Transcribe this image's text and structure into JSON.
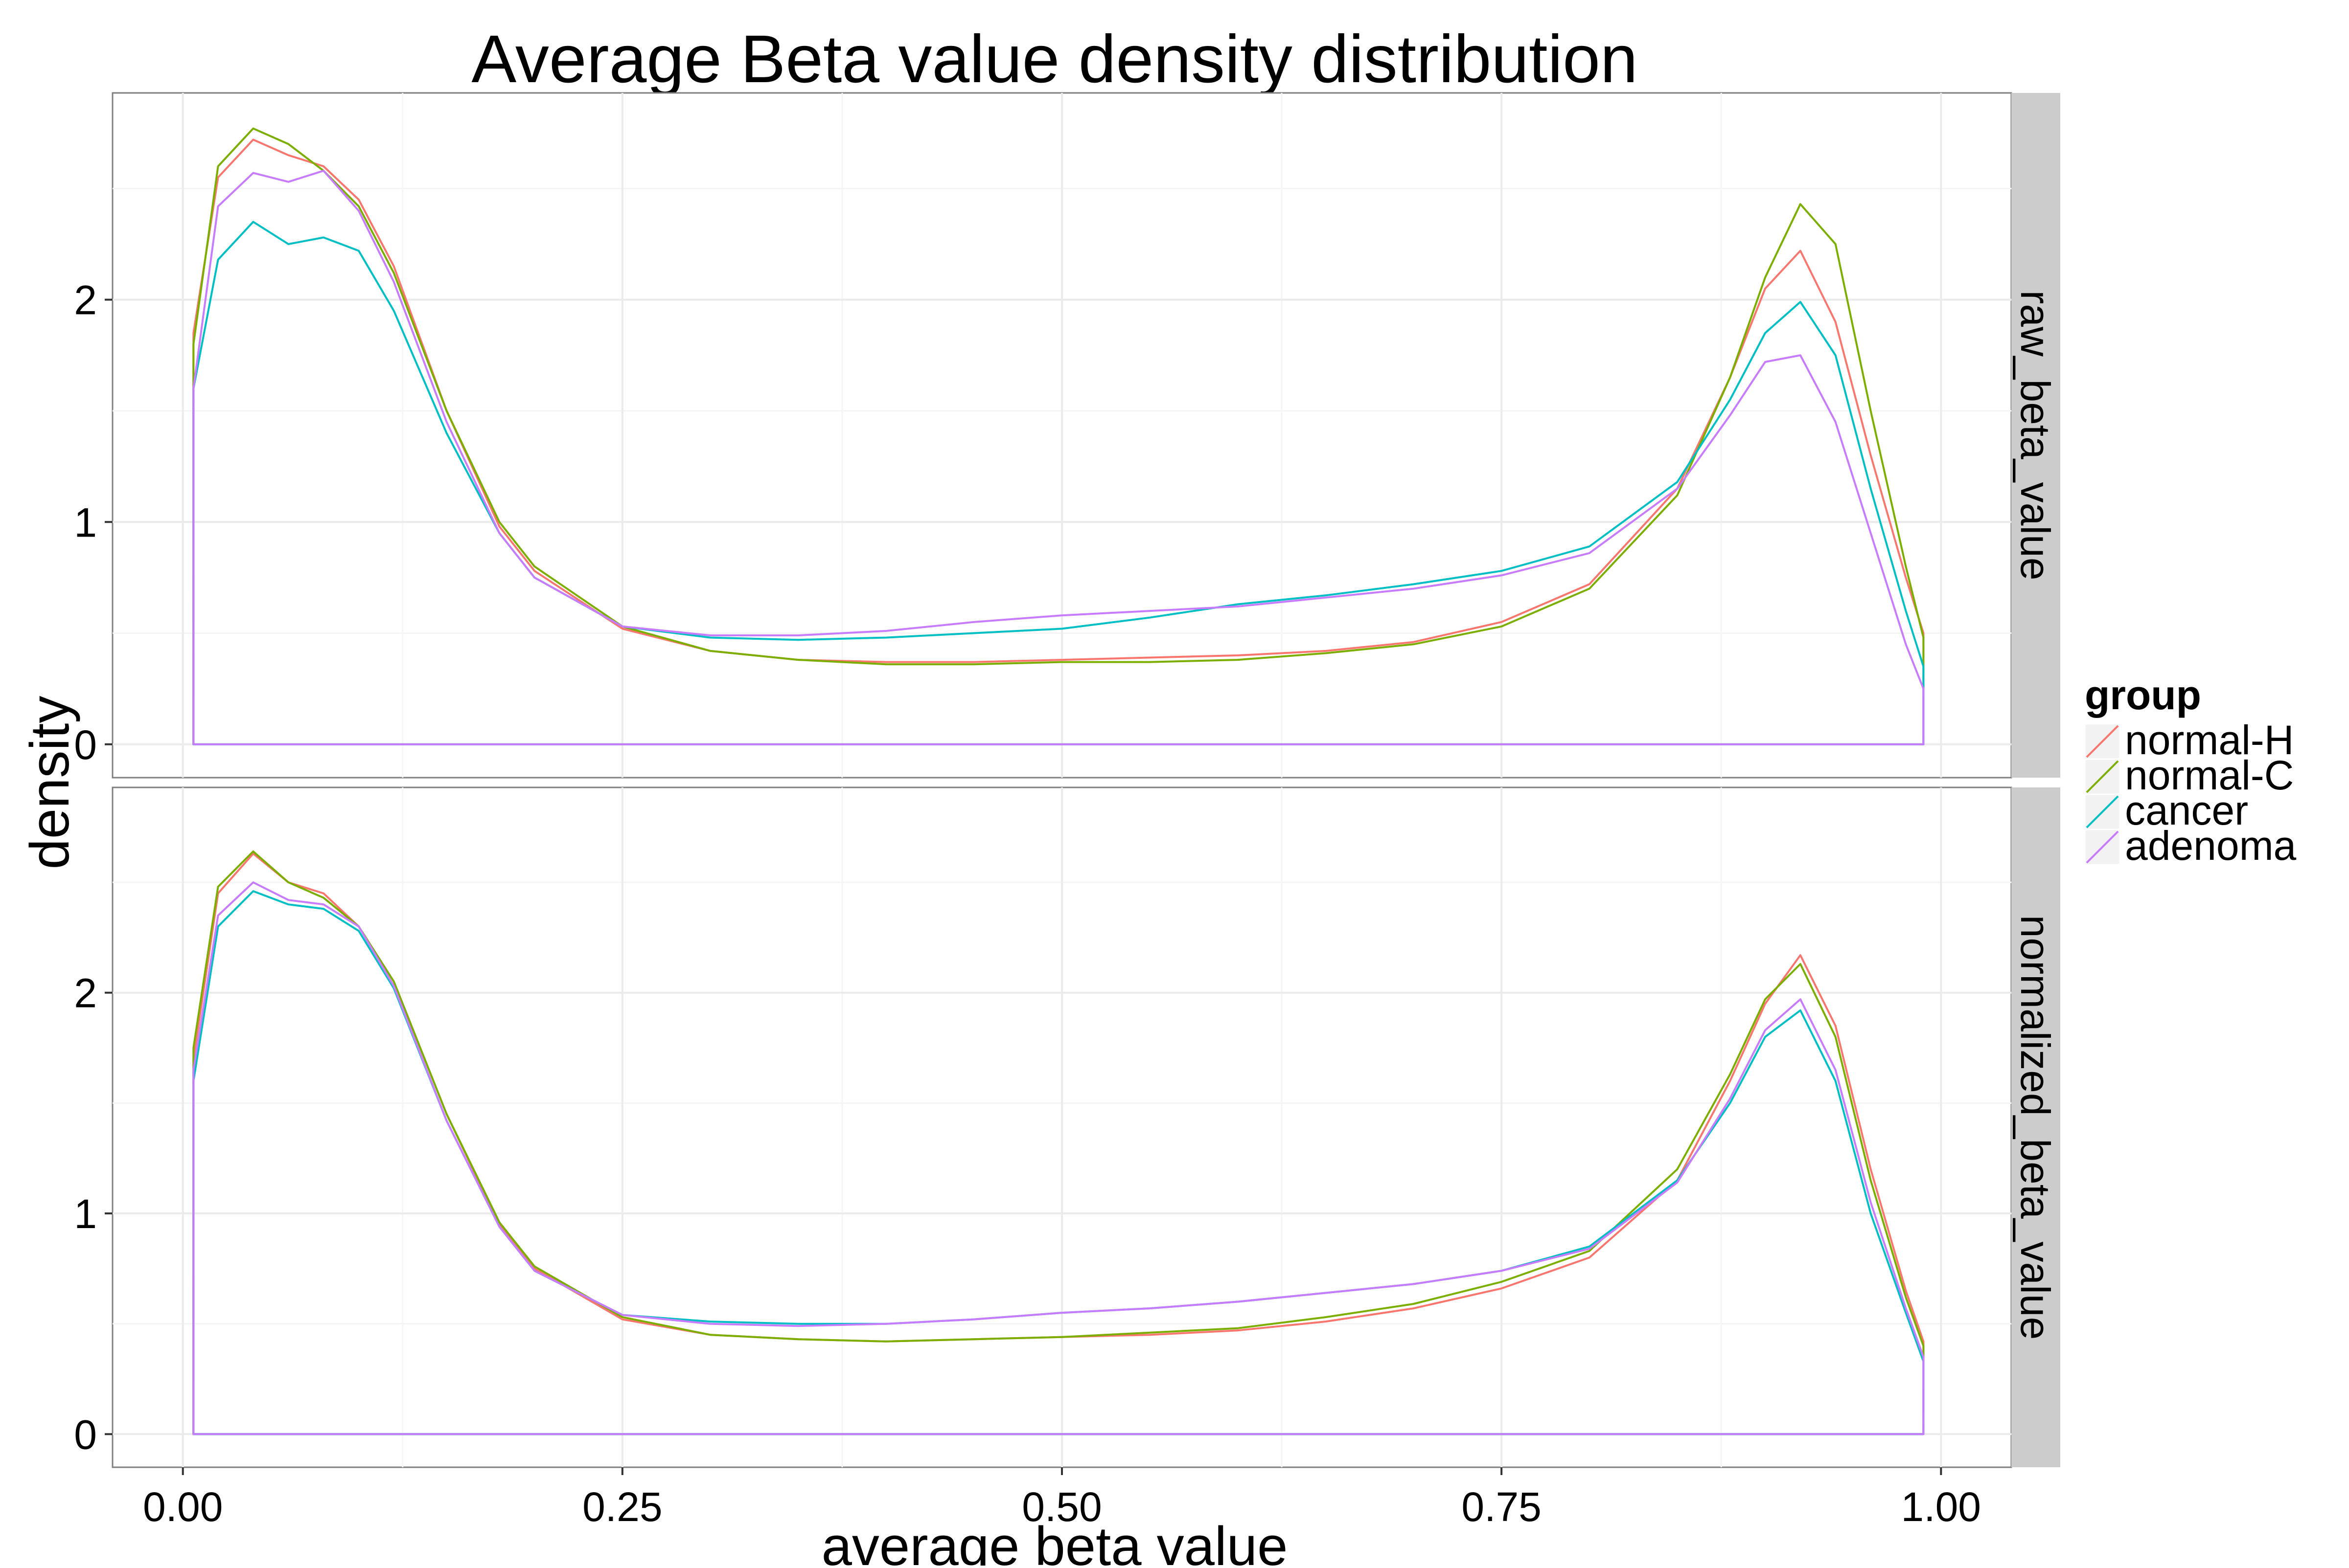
{
  "chart_data": {
    "type": "line",
    "title": "Average Beta value density distribution",
    "xlabel": "average beta value",
    "ylabel": "density",
    "xlim": [
      -0.04,
      1.04
    ],
    "ylim": [
      -0.15,
      2.93
    ],
    "x_ticks": [
      0.0,
      0.25,
      0.5,
      0.75,
      1.0
    ],
    "x_tick_labels": [
      "0.00",
      "0.25",
      "0.50",
      "0.75",
      "1.00"
    ],
    "y_ticks": [
      0,
      1,
      2
    ],
    "y_tick_labels": [
      "0",
      "1",
      "2"
    ],
    "grid": true,
    "legend": {
      "title": "group",
      "position": "right",
      "entries": [
        {
          "name": "normal-H",
          "color": "#F8766D"
        },
        {
          "name": "normal-C",
          "color": "#7CAE00"
        },
        {
          "name": "cancer",
          "color": "#00BFC4"
        },
        {
          "name": "adenoma",
          "color": "#C77CFF"
        }
      ]
    },
    "colors": {
      "panel_background": "#FFFFFF",
      "strip_background": "#CCCCCC",
      "grid_major": "#EBEBEB",
      "grid_minor": "#F5F5F5",
      "panel_border": "#7F7F7F"
    },
    "x": [
      0.006,
      0.02,
      0.04,
      0.06,
      0.08,
      0.1,
      0.12,
      0.15,
      0.18,
      0.2,
      0.25,
      0.3,
      0.35,
      0.4,
      0.45,
      0.5,
      0.55,
      0.6,
      0.65,
      0.7,
      0.75,
      0.8,
      0.85,
      0.88,
      0.9,
      0.92,
      0.94,
      0.96,
      0.98,
      0.99
    ],
    "panels": [
      {
        "strip_label": "raw_beta_value",
        "series": [
          {
            "name": "normal-H",
            "y": [
              1.85,
              2.55,
              2.72,
              2.65,
              2.6,
              2.45,
              2.15,
              1.5,
              0.98,
              0.78,
              0.52,
              0.42,
              0.38,
              0.37,
              0.37,
              0.38,
              0.39,
              0.4,
              0.42,
              0.46,
              0.55,
              0.72,
              1.15,
              1.65,
              2.05,
              2.22,
              1.9,
              1.3,
              0.75,
              0.5
            ]
          },
          {
            "name": "normal-C",
            "y": [
              1.8,
              2.6,
              2.77,
              2.7,
              2.58,
              2.42,
              2.12,
              1.5,
              1.0,
              0.8,
              0.53,
              0.42,
              0.38,
              0.36,
              0.36,
              0.37,
              0.37,
              0.38,
              0.41,
              0.45,
              0.53,
              0.7,
              1.12,
              1.65,
              2.1,
              2.43,
              2.25,
              1.5,
              0.8,
              0.48
            ]
          },
          {
            "name": "cancer",
            "y": [
              1.6,
              2.18,
              2.35,
              2.25,
              2.28,
              2.22,
              1.95,
              1.4,
              0.95,
              0.75,
              0.53,
              0.48,
              0.47,
              0.48,
              0.5,
              0.52,
              0.57,
              0.63,
              0.67,
              0.72,
              0.78,
              0.89,
              1.18,
              1.55,
              1.85,
              1.99,
              1.75,
              1.15,
              0.6,
              0.35
            ]
          },
          {
            "name": "adenoma",
            "y": [
              1.6,
              2.42,
              2.57,
              2.53,
              2.58,
              2.4,
              2.08,
              1.45,
              0.95,
              0.75,
              0.53,
              0.49,
              0.49,
              0.51,
              0.55,
              0.58,
              0.6,
              0.62,
              0.66,
              0.7,
              0.76,
              0.86,
              1.15,
              1.48,
              1.72,
              1.75,
              1.45,
              0.95,
              0.45,
              0.25
            ]
          }
        ]
      },
      {
        "strip_label": "normalized_beta_value",
        "series": [
          {
            "name": "normal-H",
            "y": [
              1.7,
              2.45,
              2.63,
              2.5,
              2.45,
              2.3,
              2.05,
              1.45,
              0.95,
              0.75,
              0.52,
              0.45,
              0.43,
              0.42,
              0.43,
              0.44,
              0.45,
              0.47,
              0.51,
              0.57,
              0.66,
              0.8,
              1.15,
              1.6,
              1.95,
              2.17,
              1.85,
              1.2,
              0.65,
              0.42
            ]
          },
          {
            "name": "normal-C",
            "y": [
              1.75,
              2.48,
              2.64,
              2.5,
              2.43,
              2.3,
              2.05,
              1.45,
              0.96,
              0.76,
              0.53,
              0.45,
              0.43,
              0.42,
              0.43,
              0.44,
              0.46,
              0.48,
              0.53,
              0.59,
              0.69,
              0.83,
              1.2,
              1.63,
              1.97,
              2.13,
              1.8,
              1.15,
              0.62,
              0.4
            ]
          },
          {
            "name": "cancer",
            "y": [
              1.6,
              2.3,
              2.46,
              2.4,
              2.38,
              2.28,
              2.02,
              1.42,
              0.94,
              0.74,
              0.54,
              0.51,
              0.5,
              0.5,
              0.52,
              0.55,
              0.57,
              0.6,
              0.64,
              0.68,
              0.74,
              0.85,
              1.15,
              1.5,
              1.8,
              1.92,
              1.6,
              1.0,
              0.55,
              0.33
            ]
          },
          {
            "name": "adenoma",
            "y": [
              1.65,
              2.35,
              2.5,
              2.42,
              2.4,
              2.3,
              2.03,
              1.42,
              0.94,
              0.74,
              0.54,
              0.5,
              0.49,
              0.5,
              0.52,
              0.55,
              0.57,
              0.6,
              0.64,
              0.68,
              0.74,
              0.84,
              1.14,
              1.52,
              1.83,
              1.97,
              1.65,
              1.05,
              0.57,
              0.35
            ]
          }
        ]
      }
    ]
  }
}
